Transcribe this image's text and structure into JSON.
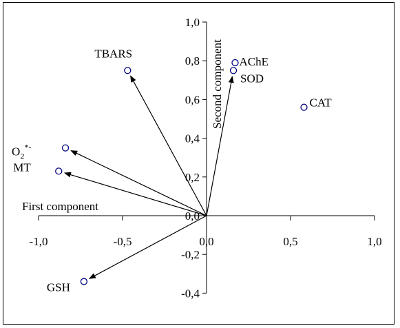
{
  "chart_data": {
    "type": "scatter",
    "xlabel": "First component",
    "ylabel": "Second component",
    "xlim": [
      -1.0,
      1.0
    ],
    "ylim": [
      -0.4,
      1.0
    ],
    "x_ticks": [
      -1.0,
      -0.5,
      0.0,
      0.5,
      1.0
    ],
    "x_tick_labels": [
      "-1,0",
      "-0,5",
      "0,0",
      "0,5",
      "1,0"
    ],
    "y_ticks": [
      1.0,
      0.8,
      0.6,
      0.4,
      0.2,
      0.0,
      -0.2,
      -0.4
    ],
    "y_tick_labels": [
      "1,0",
      "0,8",
      "0,6",
      "0,4",
      "0,2",
      "0,0",
      "-0,2",
      "-0,4"
    ],
    "grid": false,
    "points": [
      {
        "label": "TBARS",
        "x": -0.47,
        "y": 0.75,
        "arrow": true
      },
      {
        "label": "AChE",
        "x": 0.17,
        "y": 0.79,
        "arrow": false
      },
      {
        "label": "SOD",
        "x": 0.16,
        "y": 0.75,
        "arrow": true
      },
      {
        "label": "CAT",
        "x": 0.58,
        "y": 0.56,
        "arrow": false
      },
      {
        "label": "O2*-",
        "x": -0.84,
        "y": 0.35,
        "arrow": true
      },
      {
        "label": "MT",
        "x": -0.88,
        "y": 0.23,
        "arrow": true
      },
      {
        "label": "GSH",
        "x": -0.73,
        "y": -0.34,
        "arrow": true
      }
    ],
    "o2_label": {
      "base": "O",
      "sub": "2",
      "sup": "*-"
    },
    "marker_color": "#000080"
  }
}
